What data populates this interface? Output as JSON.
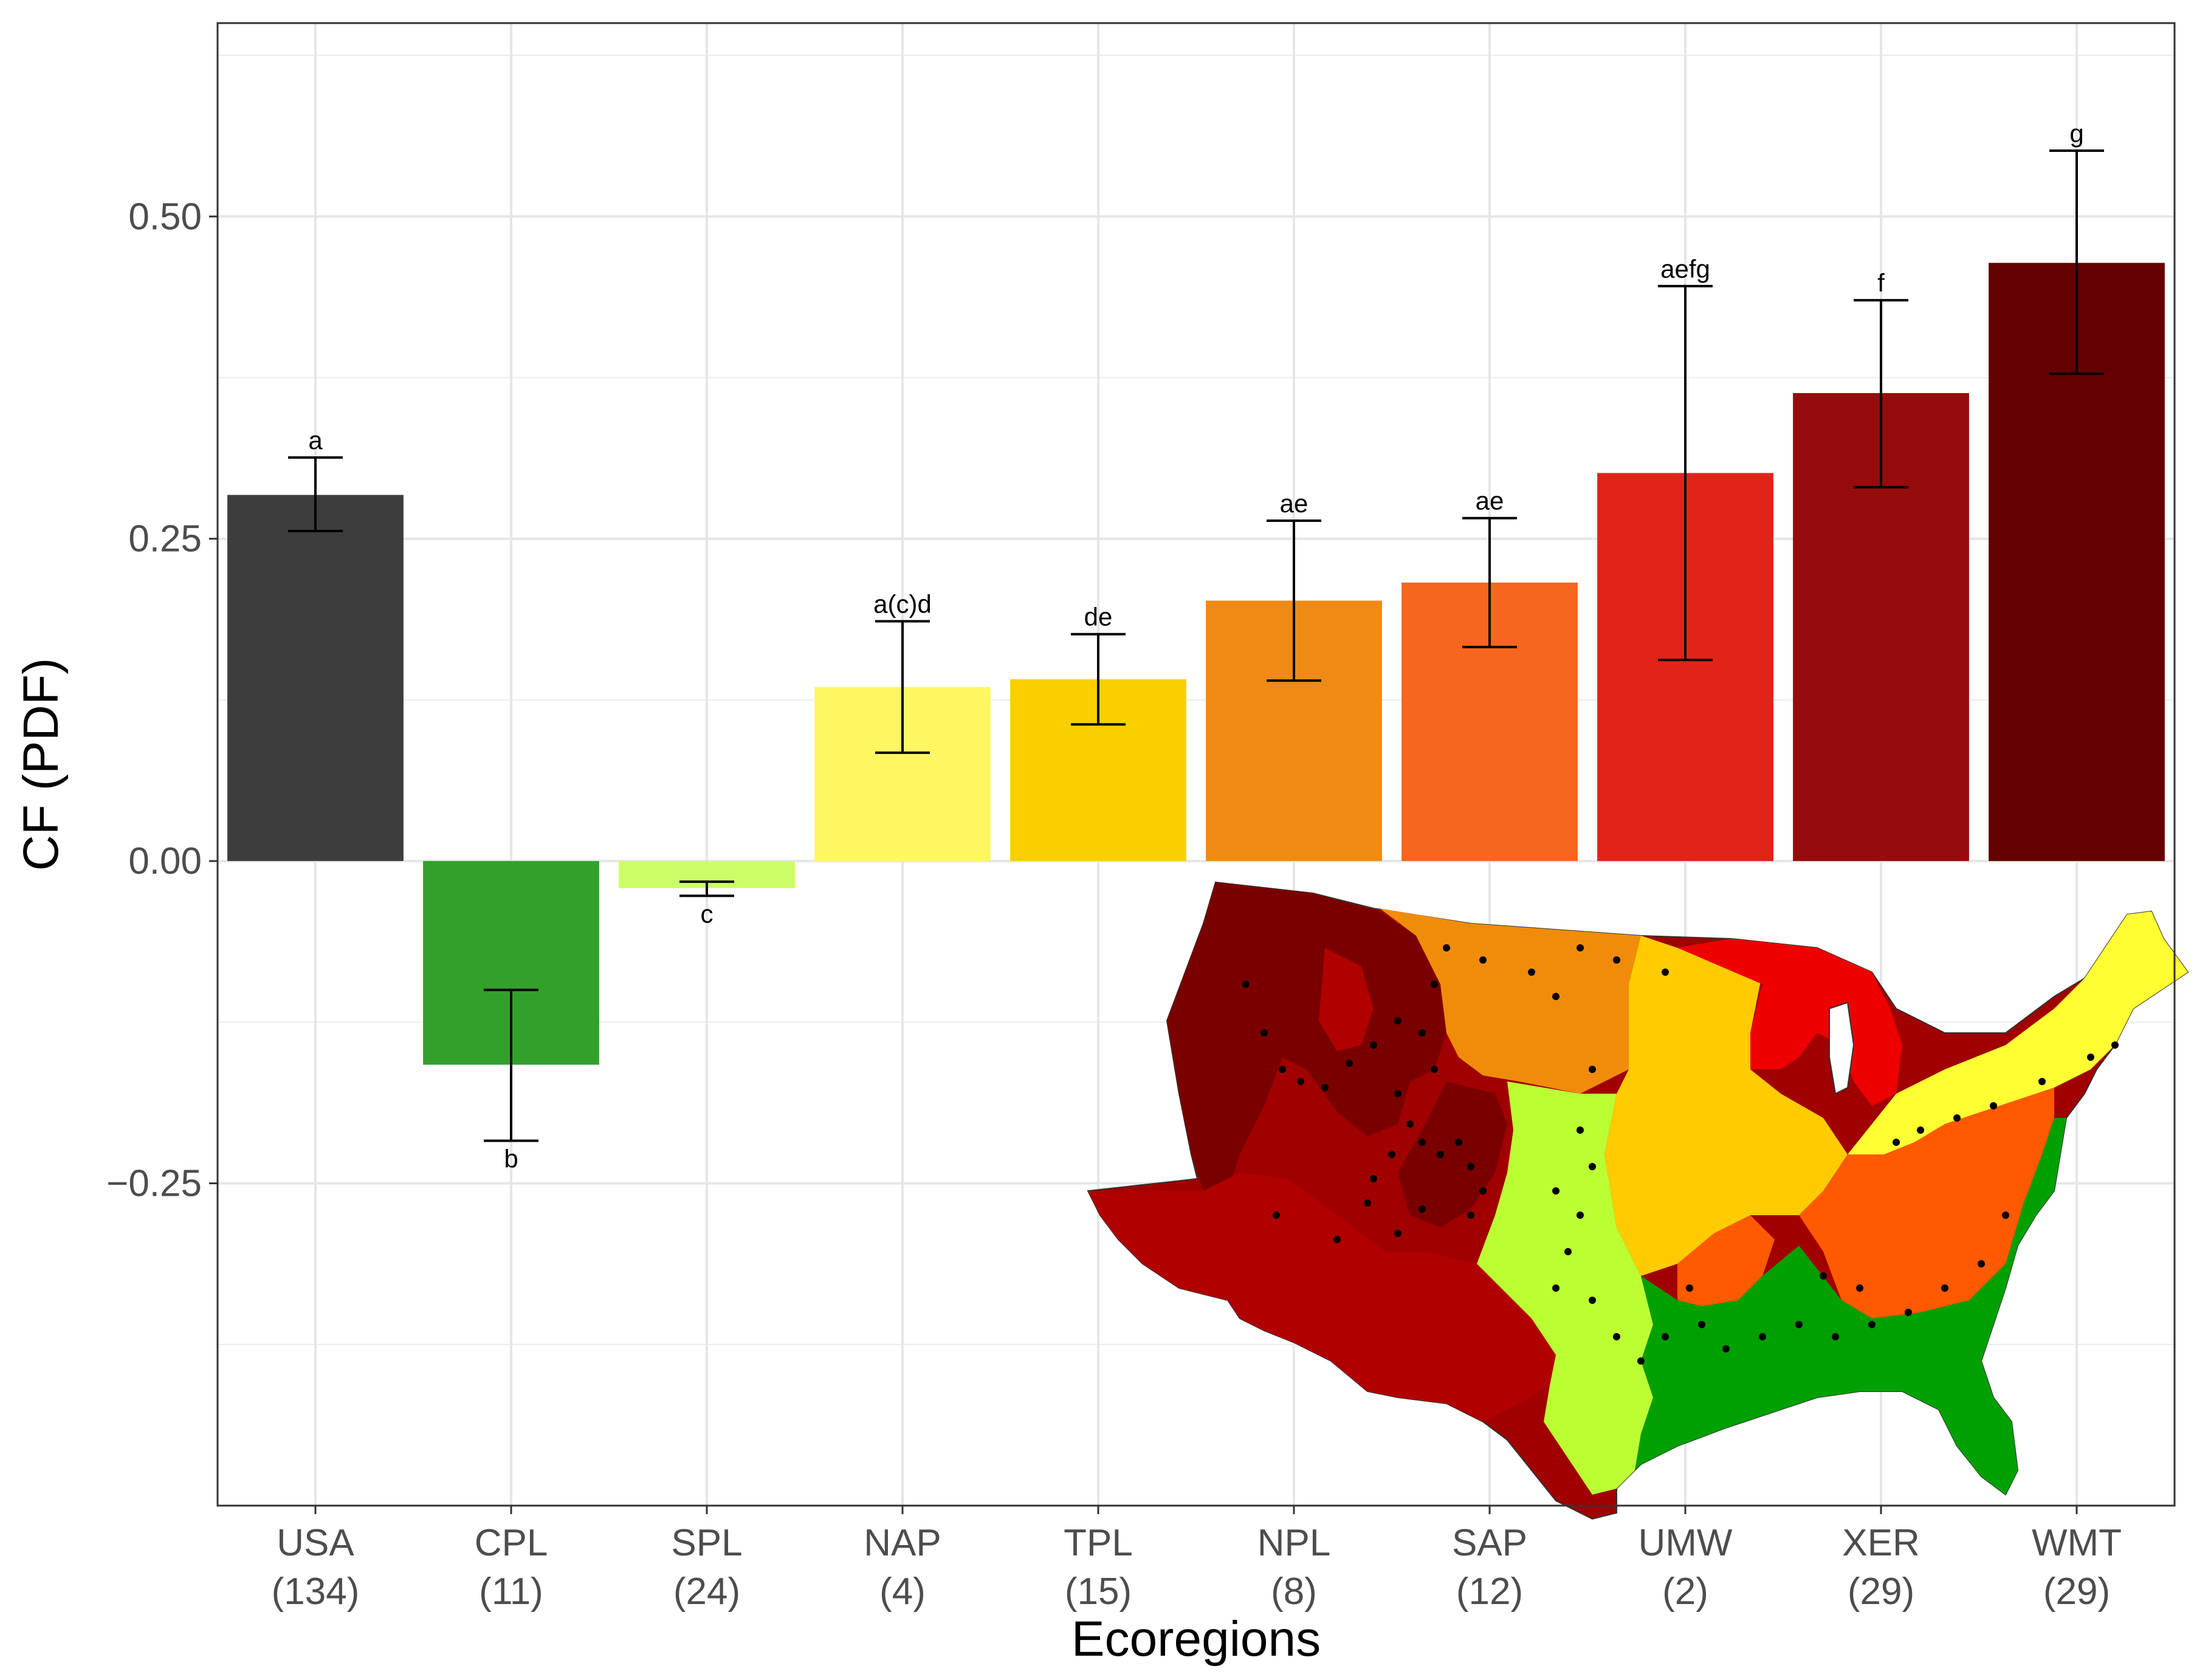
{
  "chart_data": {
    "type": "bar",
    "xlabel": "Ecoregions",
    "ylabel": "CF (PDF)",
    "ylim": [
      -0.5,
      0.65
    ],
    "yticks": [
      {
        "value": 0.5,
        "label": "0.50"
      },
      {
        "value": 0.25,
        "label": "0.25"
      },
      {
        "value": 0.0,
        "label": "0.00"
      },
      {
        "value": -0.25,
        "label": "−0.25"
      }
    ],
    "grid": true,
    "legend": "none",
    "bars": [
      {
        "category": "USA",
        "n": "(134)",
        "value": 0.284,
        "err_low": 0.256,
        "err_high": 0.313,
        "sig": "a",
        "sig_pos": "above",
        "color": "#3d3d3d"
      },
      {
        "category": "CPL",
        "n": "(11)",
        "value": -0.158,
        "err_low": -0.217,
        "err_high": -0.1,
        "sig": "b",
        "sig_pos": "below",
        "color": "#33a02c"
      },
      {
        "category": "SPL",
        "n": "(24)",
        "value": -0.021,
        "err_low": -0.027,
        "err_high": -0.016,
        "sig": "c",
        "sig_pos": "below",
        "color": "#ccff66"
      },
      {
        "category": "NAP",
        "n": "(4)",
        "value": 0.135,
        "err_low": 0.084,
        "err_high": 0.186,
        "sig": "a(c)d",
        "sig_pos": "above",
        "color": "#fff762"
      },
      {
        "category": "TPL",
        "n": "(15)",
        "value": 0.141,
        "err_low": 0.106,
        "err_high": 0.176,
        "sig": "de",
        "sig_pos": "above",
        "color": "#f8d000"
      },
      {
        "category": "NPL",
        "n": "(8)",
        "value": 0.202,
        "err_low": 0.14,
        "err_high": 0.264,
        "sig": "ae",
        "sig_pos": "above",
        "color": "#ef8a14"
      },
      {
        "category": "SAP",
        "n": "(12)",
        "value": 0.216,
        "err_low": 0.166,
        "err_high": 0.266,
        "sig": "ae",
        "sig_pos": "above",
        "color": "#f7661e"
      },
      {
        "category": "UMW",
        "n": "(2)",
        "value": 0.301,
        "err_low": 0.156,
        "err_high": 0.446,
        "sig": "aefg",
        "sig_pos": "above",
        "color": "#e2231a"
      },
      {
        "category": "XER",
        "n": "(29)",
        "value": 0.363,
        "err_low": 0.29,
        "err_high": 0.435,
        "sig": "f",
        "sig_pos": "above",
        "color": "#960c0c"
      },
      {
        "category": "WMT",
        "n": "(29)",
        "value": 0.464,
        "err_low": 0.378,
        "err_high": 0.551,
        "sig": "g",
        "sig_pos": "above",
        "color": "#640000"
      }
    ]
  },
  "inset_map": {
    "description_name": "us-ecoregions-map",
    "region_colors": {
      "WMT": "#7a0000",
      "XER": "#b00000",
      "NPL": "#f08c0a",
      "TPL": "#ffcc00",
      "UMW": "#ee0000",
      "NAP": "#ffff33",
      "SAP": "#ff5a00",
      "SPL": "#bbff33",
      "CPL": "#00a000"
    }
  }
}
